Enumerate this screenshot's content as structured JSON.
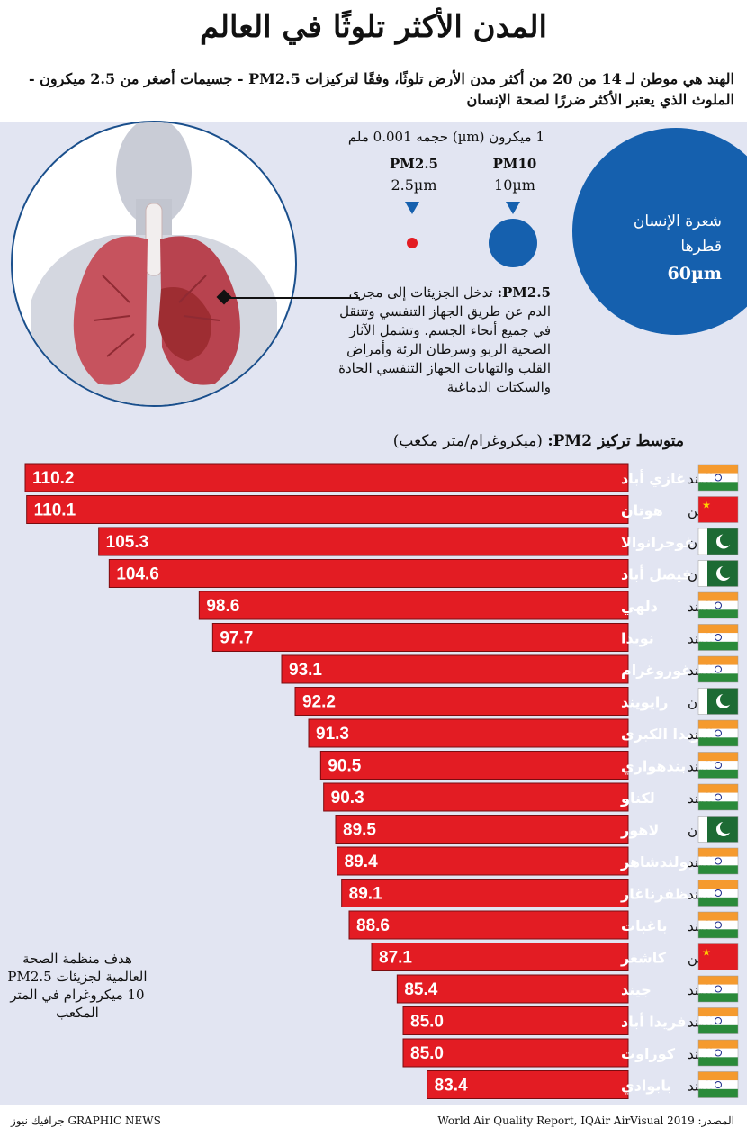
{
  "title": "المدن الأكثر تلوثًا في العالم",
  "subtitle": "الهند هي موطن لـ 14 من 20 من أكثر مدن الأرض تلوثًا، وفقًا لتركيزات PM2.5 - جسيمات أصغر من 2.5 ميكرون - الملوث الذي يعتبر الأكثر ضررًا لصحة الإنسان",
  "scale_note": "1 ميكرون (µm) حجمه 0.001 ملم",
  "pm10": {
    "label": "PM10",
    "size": "10µm"
  },
  "pm25": {
    "label": "PM2.5",
    "size": "2.5µm"
  },
  "hair": {
    "label": "شعرة الإنسان قطرها",
    "value": "60µm"
  },
  "description": {
    "lead": "PM2.5:",
    "text": "تدخل الجزيئات إلى مجرى الدم عن طريق الجهاز التنفسي وتتنقل في جميع أنحاء الجسم. وتشمل الآثار الصحية الربو وسرطان الرئة وأمراض القلب والتهابات الجهاز التنفسي الحادة والسكتات الدماغية"
  },
  "chart_heading": {
    "bold": "متوسط تركيز PM2:",
    "unit": "(ميكروغرام/متر مكعب)"
  },
  "who_note": "هدف منظمة الصحة العالمية لجزيئات PM2.5 10 ميكروغرام في المتر المكعب",
  "footer": {
    "source": "المصدر: World Air Quality Report, IQAir AirVisual 2019",
    "credit": "GRAPHIC NEWS جرافيك نيوز"
  },
  "colors": {
    "bar": "#e31c23",
    "hair": "#1560ae",
    "panel": "#e2e5f2"
  },
  "chart_data": {
    "type": "bar",
    "orientation": "horizontal",
    "title": "متوسط تركيز PM2: (ميكروغرام/متر مكعب)",
    "xlabel": "",
    "ylabel": "",
    "xlim": [
      0,
      110.2
    ],
    "categories": [
      "غازي أباد",
      "هوتان",
      "غوجرانوالا",
      "فيصل أباد",
      "دلهي",
      "نويدا",
      "غوروغرام",
      "رايويند",
      "نويدا الكبرى",
      "بندهواري",
      "لكناو",
      "لاهور",
      "يولندشاهر",
      "مظفرناغار",
      "باغبات",
      "كاشغر",
      "جيند",
      "فريدا أباد",
      "كوراوت",
      "بابوادي"
    ],
    "countries": [
      "الهند",
      "الصين",
      "باكستان",
      "باكستان",
      "الهند",
      "الهند",
      "الهند",
      "باكستان",
      "الهند",
      "الهند",
      "الهند",
      "باكستان",
      "الهند",
      "الهند",
      "الهند",
      "الصين",
      "الهند",
      "الهند",
      "الهند",
      "الهند"
    ],
    "flags": [
      "india",
      "china",
      "pakistan",
      "pakistan",
      "india",
      "india",
      "india",
      "pakistan",
      "india",
      "india",
      "india",
      "pakistan",
      "india",
      "india",
      "india",
      "china",
      "india",
      "india",
      "india",
      "india"
    ],
    "values": [
      110.2,
      110.1,
      105.3,
      104.6,
      98.6,
      97.7,
      93.1,
      92.2,
      91.3,
      90.5,
      90.3,
      89.5,
      89.4,
      89.1,
      88.6,
      87.1,
      85.4,
      85.0,
      85.0,
      83.4
    ],
    "value_labels": [
      "110.2",
      "110.1",
      "105.3",
      "104.6",
      "98.6",
      "97.7",
      "93.1",
      "92.2",
      "91.3",
      "90.5",
      "90.3",
      "89.5",
      "89.4",
      "89.1",
      "88.6",
      "87.1",
      "85.4",
      "85.0",
      "85.0",
      "83.4"
    ]
  }
}
